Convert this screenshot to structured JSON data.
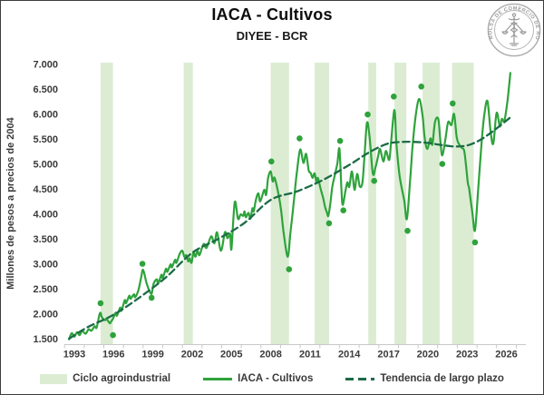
{
  "figure": {
    "title": "IACA - Cultivos",
    "subtitle": "DIYEE - BCR",
    "logo_text": "BOLSA DE COMERCIO DE ROSARIO"
  },
  "chart_data": {
    "type": "line",
    "title": "IACA - Cultivos",
    "subtitle": "DIYEE - BCR",
    "xlabel": "",
    "ylabel": "Millones de pesos a precios de 2004",
    "grid": false,
    "legend_position": "bottom",
    "legend": [
      "Ciclo agroindustrial",
      "IACA - Cultivos",
      "Tendencia de largo plazo"
    ],
    "xlim": [
      1992.45,
      2027.0
    ],
    "ylim": [
      1390,
      7050
    ],
    "x_ticks": [
      1993,
      1996,
      1999,
      2002,
      2005,
      2008,
      2011,
      2014,
      2017,
      2020,
      2023,
      2026
    ],
    "y_ticks": [
      {
        "value": 7000,
        "label": "7.000"
      },
      {
        "value": 6500,
        "label": "6.500"
      },
      {
        "value": 6000,
        "label": "6.000"
      },
      {
        "value": 5500,
        "label": "5.500"
      },
      {
        "value": 5000,
        "label": "5.000"
      },
      {
        "value": 4500,
        "label": "4.500"
      },
      {
        "value": 4000,
        "label": "4.000"
      },
      {
        "value": 3500,
        "label": "3.500"
      },
      {
        "value": 3000,
        "label": "3.000"
      },
      {
        "value": 2500,
        "label": "2.500"
      },
      {
        "value": 2000,
        "label": "2.000"
      },
      {
        "value": 1500,
        "label": "1.500"
      }
    ],
    "axis": {
      "line_color": "#c9c9c9",
      "label_color": "#3a3a3a"
    },
    "bands": {
      "name": "Ciclo agroindustrial",
      "color": "#dbecd3",
      "ranges": [
        [
          1995.0,
          1995.95
        ],
        [
          2001.35,
          2002.05
        ],
        [
          2008.0,
          2009.4
        ],
        [
          2011.35,
          2012.45
        ],
        [
          2015.45,
          2016.05
        ],
        [
          2017.45,
          2018.35
        ],
        [
          2019.6,
          2020.9
        ],
        [
          2021.85,
          2023.5
        ]
      ]
    },
    "series": [
      {
        "name": "IACA - Cultivos",
        "type": "line",
        "color": "#2ea33b",
        "points": [
          [
            1992.6,
            1490
          ],
          [
            1992.8,
            1610
          ],
          [
            1993.0,
            1540
          ],
          [
            1993.2,
            1630
          ],
          [
            1993.4,
            1570
          ],
          [
            1993.6,
            1660
          ],
          [
            1993.85,
            1600
          ],
          [
            1994.1,
            1690
          ],
          [
            1994.3,
            1660
          ],
          [
            1994.55,
            1750
          ],
          [
            1994.7,
            1720
          ],
          [
            1994.9,
            1960
          ],
          [
            1995.0,
            2020
          ],
          [
            1995.1,
            1930
          ],
          [
            1995.35,
            1870
          ],
          [
            1995.45,
            1900
          ],
          [
            1995.7,
            1810
          ],
          [
            1995.8,
            1840
          ],
          [
            1995.95,
            1900
          ],
          [
            1996.15,
            2020
          ],
          [
            1996.25,
            1960
          ],
          [
            1996.5,
            2120
          ],
          [
            1996.6,
            2060
          ],
          [
            1996.85,
            2270
          ],
          [
            1996.95,
            2210
          ],
          [
            1997.2,
            2360
          ],
          [
            1997.3,
            2300
          ],
          [
            1997.55,
            2390
          ],
          [
            1997.65,
            2330
          ],
          [
            1997.9,
            2480
          ],
          [
            1998.1,
            2720
          ],
          [
            1998.25,
            2880
          ],
          [
            1998.5,
            2630
          ],
          [
            1998.7,
            2480
          ],
          [
            1998.9,
            2400
          ],
          [
            1999.05,
            2600
          ],
          [
            1999.3,
            2690
          ],
          [
            1999.4,
            2600
          ],
          [
            1999.65,
            2780
          ],
          [
            1999.75,
            2720
          ],
          [
            2000.0,
            2900
          ],
          [
            2000.1,
            2840
          ],
          [
            2000.35,
            2990
          ],
          [
            2000.45,
            2930
          ],
          [
            2000.7,
            3080
          ],
          [
            2000.8,
            3020
          ],
          [
            2001.05,
            3200
          ],
          [
            2001.25,
            3260
          ],
          [
            2001.4,
            3140
          ],
          [
            2001.55,
            3170
          ],
          [
            2001.7,
            3050
          ],
          [
            2001.8,
            3110
          ],
          [
            2001.95,
            3020
          ],
          [
            2002.1,
            3230
          ],
          [
            2002.25,
            3140
          ],
          [
            2002.4,
            3260
          ],
          [
            2002.55,
            3170
          ],
          [
            2002.75,
            3320
          ],
          [
            2002.9,
            3400
          ],
          [
            2003.1,
            3320
          ],
          [
            2003.45,
            3550
          ],
          [
            2003.7,
            3410
          ],
          [
            2003.9,
            3630
          ],
          [
            2004.2,
            3260
          ],
          [
            2004.5,
            3630
          ],
          [
            2004.7,
            3510
          ],
          [
            2004.9,
            3600
          ],
          [
            2005.0,
            3300
          ],
          [
            2005.25,
            4230
          ],
          [
            2005.5,
            3900
          ],
          [
            2005.7,
            3990
          ],
          [
            2005.9,
            3960
          ],
          [
            2006.0,
            4050
          ],
          [
            2006.1,
            3930
          ],
          [
            2006.3,
            4020
          ],
          [
            2006.45,
            3900
          ],
          [
            2006.6,
            4110
          ],
          [
            2006.7,
            4050
          ],
          [
            2006.85,
            4260
          ],
          [
            2007.05,
            4410
          ],
          [
            2007.2,
            4250
          ],
          [
            2007.5,
            4480
          ],
          [
            2007.65,
            4380
          ],
          [
            2007.8,
            4720
          ],
          [
            2008.0,
            4850
          ],
          [
            2008.15,
            4650
          ],
          [
            2008.3,
            4720
          ],
          [
            2008.6,
            4380
          ],
          [
            2008.8,
            4050
          ],
          [
            2009.0,
            3600
          ],
          [
            2009.3,
            3140
          ],
          [
            2009.5,
            3620
          ],
          [
            2009.7,
            4080
          ],
          [
            2009.9,
            4600
          ],
          [
            2010.0,
            4840
          ],
          [
            2010.25,
            5290
          ],
          [
            2010.5,
            5020
          ],
          [
            2010.7,
            5200
          ],
          [
            2010.9,
            4870
          ],
          [
            2011.05,
            4820
          ],
          [
            2011.2,
            4720
          ],
          [
            2011.35,
            4810
          ],
          [
            2011.5,
            4630
          ],
          [
            2011.6,
            4720
          ],
          [
            2011.8,
            4510
          ],
          [
            2012.0,
            4320
          ],
          [
            2012.15,
            4140
          ],
          [
            2012.3,
            4020
          ],
          [
            2012.4,
            3960
          ],
          [
            2012.55,
            4200
          ],
          [
            2012.7,
            4540
          ],
          [
            2012.85,
            4720
          ],
          [
            2013.0,
            4900
          ],
          [
            2013.1,
            5020
          ],
          [
            2013.25,
            5300
          ],
          [
            2013.4,
            4480
          ],
          [
            2013.5,
            4180
          ],
          [
            2013.7,
            4450
          ],
          [
            2013.85,
            4630
          ],
          [
            2014.0,
            4540
          ],
          [
            2014.2,
            4850
          ],
          [
            2014.4,
            4480
          ],
          [
            2014.6,
            4800
          ],
          [
            2014.8,
            4550
          ],
          [
            2015.0,
            4620
          ],
          [
            2015.15,
            5100
          ],
          [
            2015.35,
            5820
          ],
          [
            2015.55,
            5540
          ],
          [
            2015.8,
            4810
          ],
          [
            2016.0,
            4930
          ],
          [
            2016.2,
            5150
          ],
          [
            2016.35,
            5300
          ],
          [
            2016.6,
            5050
          ],
          [
            2016.8,
            5260
          ],
          [
            2017.05,
            5080
          ],
          [
            2017.2,
            5450
          ],
          [
            2017.45,
            6080
          ],
          [
            2017.6,
            5410
          ],
          [
            2017.85,
            4750
          ],
          [
            2018.2,
            4260
          ],
          [
            2018.4,
            3900
          ],
          [
            2018.65,
            4690
          ],
          [
            2018.85,
            5410
          ],
          [
            2019.1,
            6020
          ],
          [
            2019.35,
            6300
          ],
          [
            2019.6,
            5960
          ],
          [
            2019.75,
            5540
          ],
          [
            2019.95,
            5300
          ],
          [
            2020.2,
            5510
          ],
          [
            2020.35,
            5390
          ],
          [
            2020.55,
            5840
          ],
          [
            2020.8,
            5900
          ],
          [
            2020.95,
            5480
          ],
          [
            2021.1,
            5170
          ],
          [
            2021.35,
            5510
          ],
          [
            2021.55,
            5840
          ],
          [
            2021.8,
            5780
          ],
          [
            2022.0,
            6000
          ],
          [
            2022.2,
            5550
          ],
          [
            2022.35,
            5410
          ],
          [
            2022.6,
            5320
          ],
          [
            2022.8,
            5230
          ],
          [
            2023.05,
            4630
          ],
          [
            2023.15,
            4510
          ],
          [
            2023.4,
            4020
          ],
          [
            2023.6,
            3670
          ],
          [
            2023.85,
            4510
          ],
          [
            2024.1,
            5410
          ],
          [
            2024.3,
            5960
          ],
          [
            2024.55,
            6260
          ],
          [
            2024.8,
            5630
          ],
          [
            2025.0,
            5410
          ],
          [
            2025.25,
            6020
          ],
          [
            2025.5,
            5750
          ],
          [
            2025.65,
            5900
          ],
          [
            2025.85,
            5870
          ],
          [
            2026.1,
            6300
          ],
          [
            2026.3,
            6820
          ]
        ]
      },
      {
        "name": "Tendencia de largo plazo",
        "type": "dashed-line",
        "color": "#1c6b47",
        "points": [
          [
            1992.6,
            1500
          ],
          [
            1994,
            1730
          ],
          [
            1996,
            1980
          ],
          [
            1998,
            2330
          ],
          [
            2000,
            2730
          ],
          [
            2002,
            3220
          ],
          [
            2004,
            3500
          ],
          [
            2006,
            3820
          ],
          [
            2008,
            4280
          ],
          [
            2010,
            4450
          ],
          [
            2012,
            4680
          ],
          [
            2014,
            4980
          ],
          [
            2015,
            5150
          ],
          [
            2016,
            5300
          ],
          [
            2017,
            5410
          ],
          [
            2018,
            5440
          ],
          [
            2019,
            5440
          ],
          [
            2020,
            5420
          ],
          [
            2021,
            5380
          ],
          [
            2022,
            5350
          ],
          [
            2023,
            5370
          ],
          [
            2024,
            5480
          ],
          [
            2025,
            5660
          ],
          [
            2026.3,
            5930
          ]
        ]
      }
    ],
    "turning_points": {
      "name": "Picos y valles del ciclo",
      "type": "scatter",
      "color": "#2ea33b",
      "points": [
        [
          1995.0,
          2210
        ],
        [
          1995.95,
          1570
        ],
        [
          1998.2,
          3000
        ],
        [
          1998.9,
          2320
        ],
        [
          2008.05,
          5050
        ],
        [
          2009.4,
          2890
        ],
        [
          2010.2,
          5510
        ],
        [
          2012.45,
          3810
        ],
        [
          2013.3,
          5460
        ],
        [
          2013.55,
          4070
        ],
        [
          2015.4,
          5990
        ],
        [
          2015.9,
          4660
        ],
        [
          2017.4,
          6350
        ],
        [
          2018.45,
          3660
        ],
        [
          2019.5,
          6550
        ],
        [
          2021.1,
          5000
        ],
        [
          2021.9,
          6210
        ],
        [
          2023.6,
          3430
        ]
      ]
    }
  }
}
